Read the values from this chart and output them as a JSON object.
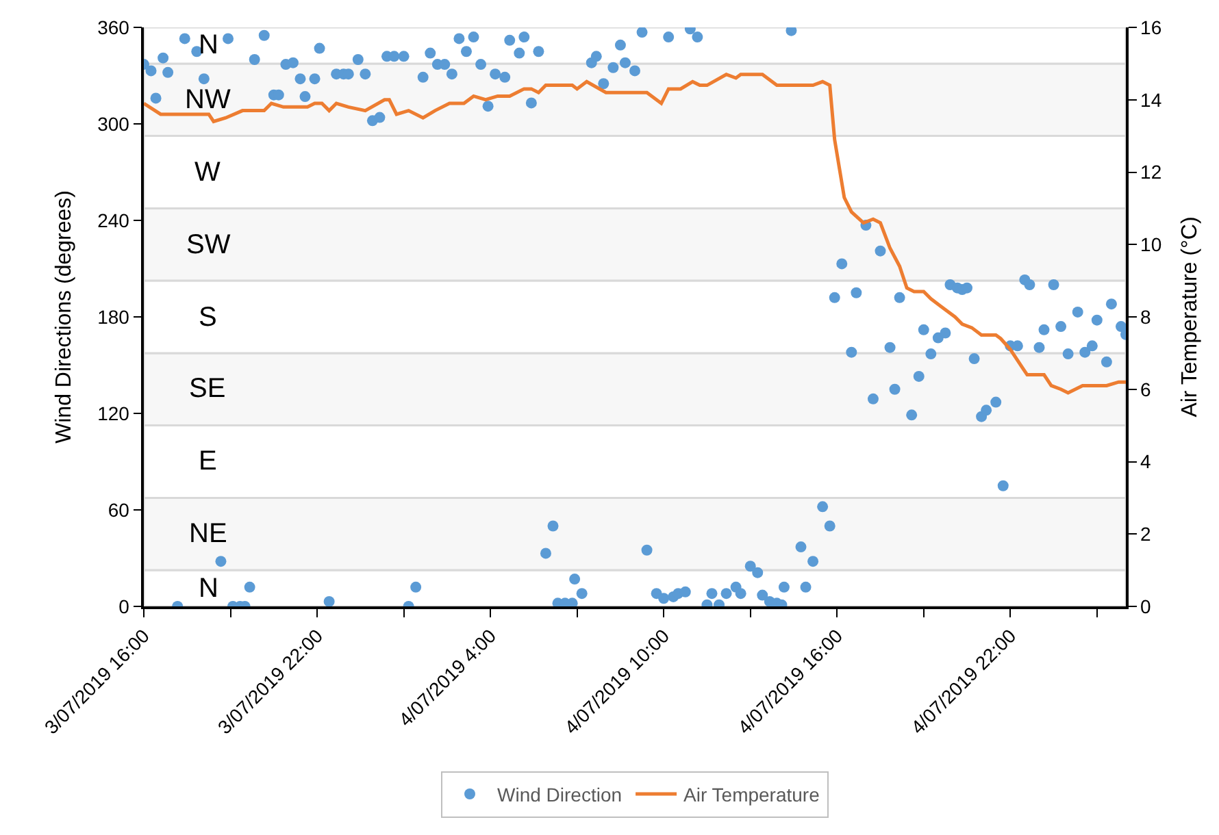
{
  "chart_data": {
    "type": "scatter",
    "xlabel": null,
    "ylabel": "Wind Directions (degrees)",
    "y2label": "Air Temperature (°C)",
    "xlim": [
      "2019-07-03T16:00",
      "2019-07-05T02:00"
    ],
    "xticks": [
      {
        "value": "2019-07-03T16:00",
        "label": "3/07/2019 16:00"
      },
      {
        "value": "2019-07-03T19:00",
        "label": null
      },
      {
        "value": "2019-07-03T22:00",
        "label": "3/07/2019 22:00"
      },
      {
        "value": "2019-07-04T01:00",
        "label": null
      },
      {
        "value": "2019-07-04T04:00",
        "label": "4/07/2019 4:00"
      },
      {
        "value": "2019-07-04T07:00",
        "label": null
      },
      {
        "value": "2019-07-04T10:00",
        "label": "4/07/2019 10:00"
      },
      {
        "value": "2019-07-04T13:00",
        "label": null
      },
      {
        "value": "2019-07-04T16:00",
        "label": "4/07/2019 16:00"
      },
      {
        "value": "2019-07-04T19:00",
        "label": null
      },
      {
        "value": "2019-07-04T22:00",
        "label": "4/07/2019 22:00"
      },
      {
        "value": "2019-07-05T01:00",
        "label": null
      }
    ],
    "ylim": [
      0,
      360
    ],
    "yticks": [
      0,
      60,
      120,
      180,
      240,
      300,
      360
    ],
    "y2lim": [
      0,
      16
    ],
    "y2ticks": [
      0,
      2,
      4,
      6,
      8,
      10,
      12,
      14,
      16
    ],
    "grid": false,
    "legend": "bottom",
    "marker": "circle",
    "bands": [
      {
        "axis": "y",
        "from": 0,
        "to": 22.5,
        "label": "N",
        "color": "#ffffff"
      },
      {
        "axis": "y",
        "from": 22.5,
        "to": 67.5,
        "label": "NE",
        "color": "#f7f7f7"
      },
      {
        "axis": "y",
        "from": 67.5,
        "to": 112.5,
        "label": "E",
        "color": "#ffffff"
      },
      {
        "axis": "y",
        "from": 112.5,
        "to": 157.5,
        "label": "SE",
        "color": "#f7f7f7"
      },
      {
        "axis": "y",
        "from": 157.5,
        "to": 202.5,
        "label": "S",
        "color": "#ffffff"
      },
      {
        "axis": "y",
        "from": 202.5,
        "to": 247.5,
        "label": "SW",
        "color": "#f7f7f7"
      },
      {
        "axis": "y",
        "from": 247.5,
        "to": 292.5,
        "label": "W",
        "color": "#ffffff"
      },
      {
        "axis": "y",
        "from": 292.5,
        "to": 337.5,
        "label": "NW",
        "color": "#f7f7f7"
      },
      {
        "axis": "y",
        "from": 337.5,
        "to": 360,
        "label": "N",
        "color": "#ffffff"
      }
    ],
    "series": [
      {
        "name": "Wind Direction",
        "color": "#5b9bd5",
        "x": [
          "2019-07-03T16:00",
          "2019-07-03T16:15",
          "2019-07-03T16:25",
          "2019-07-03T16:40",
          "2019-07-03T16:50",
          "2019-07-03T17:10",
          "2019-07-03T17:25",
          "2019-07-03T17:50",
          "2019-07-03T18:05",
          "2019-07-03T18:40",
          "2019-07-03T18:55",
          "2019-07-03T19:05",
          "2019-07-03T19:20",
          "2019-07-03T19:30",
          "2019-07-03T19:40",
          "2019-07-03T19:50",
          "2019-07-03T20:10",
          "2019-07-03T20:30",
          "2019-07-03T20:40",
          "2019-07-03T20:55",
          "2019-07-03T21:10",
          "2019-07-03T21:25",
          "2019-07-03T21:35",
          "2019-07-03T21:55",
          "2019-07-03T22:05",
          "2019-07-03T22:25",
          "2019-07-03T22:40",
          "2019-07-03T22:55",
          "2019-07-03T23:05",
          "2019-07-03T23:25",
          "2019-07-03T23:40",
          "2019-07-03T23:55",
          "2019-07-04T00:10",
          "2019-07-04T00:25",
          "2019-07-04T00:40",
          "2019-07-04T01:00",
          "2019-07-04T01:10",
          "2019-07-04T01:25",
          "2019-07-04T01:40",
          "2019-07-04T01:55",
          "2019-07-04T02:10",
          "2019-07-04T02:25",
          "2019-07-04T02:40",
          "2019-07-04T02:55",
          "2019-07-04T03:10",
          "2019-07-04T03:25",
          "2019-07-04T03:40",
          "2019-07-04T03:55",
          "2019-07-04T04:10",
          "2019-07-04T04:30",
          "2019-07-04T04:40",
          "2019-07-04T05:00",
          "2019-07-04T05:10",
          "2019-07-04T05:25",
          "2019-07-04T05:40",
          "2019-07-04T05:55",
          "2019-07-04T06:10",
          "2019-07-04T06:20",
          "2019-07-04T06:35",
          "2019-07-04T06:50",
          "2019-07-04T06:55",
          "2019-07-04T07:10",
          "2019-07-04T07:30",
          "2019-07-04T07:40",
          "2019-07-04T07:55",
          "2019-07-04T08:15",
          "2019-07-04T08:30",
          "2019-07-04T08:40",
          "2019-07-04T09:00",
          "2019-07-04T09:15",
          "2019-07-04T09:25",
          "2019-07-04T09:45",
          "2019-07-04T10:00",
          "2019-07-04T10:10",
          "2019-07-04T10:20",
          "2019-07-04T10:30",
          "2019-07-04T10:45",
          "2019-07-04T10:55",
          "2019-07-04T11:10",
          "2019-07-04T11:30",
          "2019-07-04T11:40",
          "2019-07-04T11:55",
          "2019-07-04T12:10",
          "2019-07-04T12:30",
          "2019-07-04T12:40",
          "2019-07-04T13:00",
          "2019-07-04T13:15",
          "2019-07-04T13:25",
          "2019-07-04T13:40",
          "2019-07-04T13:55",
          "2019-07-04T14:05",
          "2019-07-04T14:10",
          "2019-07-04T14:25",
          "2019-07-04T14:45",
          "2019-07-04T14:55",
          "2019-07-04T15:10",
          "2019-07-04T15:30",
          "2019-07-04T15:45",
          "2019-07-04T15:55",
          "2019-07-04T16:10",
          "2019-07-04T16:30",
          "2019-07-04T16:40",
          "2019-07-04T17:00",
          "2019-07-04T17:15",
          "2019-07-04T17:30",
          "2019-07-04T17:50",
          "2019-07-04T18:00",
          "2019-07-04T18:10",
          "2019-07-04T18:35",
          "2019-07-04T18:50",
          "2019-07-04T19:00",
          "2019-07-04T19:15",
          "2019-07-04T19:30",
          "2019-07-04T19:45",
          "2019-07-04T19:55",
          "2019-07-04T20:10",
          "2019-07-04T20:20",
          "2019-07-04T20:30",
          "2019-07-04T20:45",
          "2019-07-04T21:00",
          "2019-07-04T21:10",
          "2019-07-04T21:30",
          "2019-07-04T21:45",
          "2019-07-04T22:00",
          "2019-07-04T22:15",
          "2019-07-04T22:30",
          "2019-07-04T22:40",
          "2019-07-04T23:00",
          "2019-07-04T23:10",
          "2019-07-04T23:30",
          "2019-07-04T23:45",
          "2019-07-05T00:00",
          "2019-07-05T00:20",
          "2019-07-05T00:35",
          "2019-07-05T00:50",
          "2019-07-05T01:00",
          "2019-07-05T01:20",
          "2019-07-05T01:30",
          "2019-07-05T01:50",
          "2019-07-05T02:00"
        ],
        "values": [
          337,
          333,
          316,
          341,
          332,
          0,
          353,
          345,
          328,
          28,
          353,
          0,
          0,
          0,
          12,
          340,
          355,
          318,
          318,
          337,
          338,
          328,
          317,
          328,
          347,
          3,
          331,
          331,
          331,
          340,
          331,
          302,
          304,
          342,
          342,
          342,
          0,
          12,
          329,
          344,
          337,
          337,
          331,
          353,
          345,
          354,
          337,
          311,
          331,
          329,
          352,
          344,
          354,
          313,
          345,
          33,
          50,
          2,
          2,
          2,
          17,
          8,
          338,
          342,
          325,
          335,
          349,
          338,
          333,
          357,
          35,
          8,
          5,
          354,
          6,
          8,
          9,
          359,
          354,
          1,
          8,
          1,
          8,
          12,
          8,
          25,
          21,
          7,
          3,
          2,
          1,
          12,
          358,
          37,
          12,
          28,
          62,
          50,
          192,
          213,
          158,
          195,
          237,
          129,
          221,
          161,
          135,
          192,
          119,
          143,
          172,
          157,
          167,
          170,
          200,
          198,
          197,
          198,
          154,
          118,
          122,
          127,
          75,
          162,
          162,
          203,
          200,
          161,
          172,
          200,
          174,
          157,
          183,
          158,
          162,
          178,
          152,
          188,
          174,
          169
        ]
      },
      {
        "name": "Air Temperature",
        "type": "line",
        "axis": "y2",
        "color": "#ed7d31",
        "marker": "none",
        "line_style": "solid",
        "x": [
          "2019-07-03T16:00",
          "2019-07-03T16:35",
          "2019-07-03T17:30",
          "2019-07-03T18:15",
          "2019-07-03T18:25",
          "2019-07-03T18:50",
          "2019-07-03T19:25",
          "2019-07-03T20:10",
          "2019-07-03T20:25",
          "2019-07-03T20:50",
          "2019-07-03T21:40",
          "2019-07-03T21:55",
          "2019-07-03T22:10",
          "2019-07-03T22:25",
          "2019-07-03T22:40",
          "2019-07-03T23:05",
          "2019-07-03T23:40",
          "2019-07-04T00:20",
          "2019-07-04T00:30",
          "2019-07-04T00:45",
          "2019-07-04T01:10",
          "2019-07-04T01:40",
          "2019-07-04T02:05",
          "2019-07-04T02:35",
          "2019-07-04T03:05",
          "2019-07-04T03:25",
          "2019-07-04T03:50",
          "2019-07-04T04:15",
          "2019-07-04T04:40",
          "2019-07-04T05:10",
          "2019-07-04T05:25",
          "2019-07-04T05:40",
          "2019-07-04T05:55",
          "2019-07-04T06:50",
          "2019-07-04T07:00",
          "2019-07-04T07:20",
          "2019-07-04T08:00",
          "2019-07-04T09:25",
          "2019-07-04T09:55",
          "2019-07-04T10:10",
          "2019-07-04T10:35",
          "2019-07-04T11:00",
          "2019-07-04T11:15",
          "2019-07-04T11:30",
          "2019-07-04T12:10",
          "2019-07-04T12:30",
          "2019-07-04T12:40",
          "2019-07-04T13:25",
          "2019-07-04T13:55",
          "2019-07-04T15:10",
          "2019-07-04T15:30",
          "2019-07-04T15:45",
          "2019-07-04T15:55",
          "2019-07-04T16:05",
          "2019-07-04T16:15",
          "2019-07-04T16:30",
          "2019-07-04T16:55",
          "2019-07-04T17:15",
          "2019-07-04T17:30",
          "2019-07-04T17:50",
          "2019-07-04T18:10",
          "2019-07-04T18:25",
          "2019-07-04T18:40",
          "2019-07-04T19:00",
          "2019-07-04T19:15",
          "2019-07-04T19:35",
          "2019-07-04T20:05",
          "2019-07-04T20:20",
          "2019-07-04T20:40",
          "2019-07-04T21:00",
          "2019-07-04T21:30",
          "2019-07-04T21:40",
          "2019-07-04T22:00",
          "2019-07-04T22:25",
          "2019-07-04T22:35",
          "2019-07-04T23:10",
          "2019-07-04T23:25",
          "2019-07-04T23:45",
          "2019-07-05T00:00",
          "2019-07-05T00:30",
          "2019-07-05T01:20",
          "2019-07-05T01:45",
          "2019-07-05T02:00"
        ],
        "values": [
          13.9,
          13.6,
          13.6,
          13.6,
          13.4,
          13.5,
          13.7,
          13.7,
          13.9,
          13.8,
          13.8,
          13.9,
          13.9,
          13.7,
          13.9,
          13.8,
          13.7,
          14.0,
          14.0,
          13.6,
          13.7,
          13.5,
          13.7,
          13.9,
          13.9,
          14.1,
          14.0,
          14.1,
          14.1,
          14.3,
          14.3,
          14.2,
          14.4,
          14.4,
          14.3,
          14.5,
          14.2,
          14.2,
          13.9,
          14.3,
          14.3,
          14.5,
          14.4,
          14.4,
          14.7,
          14.6,
          14.7,
          14.7,
          14.4,
          14.4,
          14.5,
          14.4,
          12.9,
          12.1,
          11.3,
          10.9,
          10.6,
          10.7,
          10.6,
          9.9,
          9.4,
          8.8,
          8.7,
          8.7,
          8.5,
          8.3,
          8.0,
          7.8,
          7.7,
          7.5,
          7.5,
          7.4,
          7.1,
          6.6,
          6.4,
          6.4,
          6.1,
          6.0,
          5.9,
          6.1,
          6.1,
          6.2,
          6.2
        ]
      }
    ]
  }
}
